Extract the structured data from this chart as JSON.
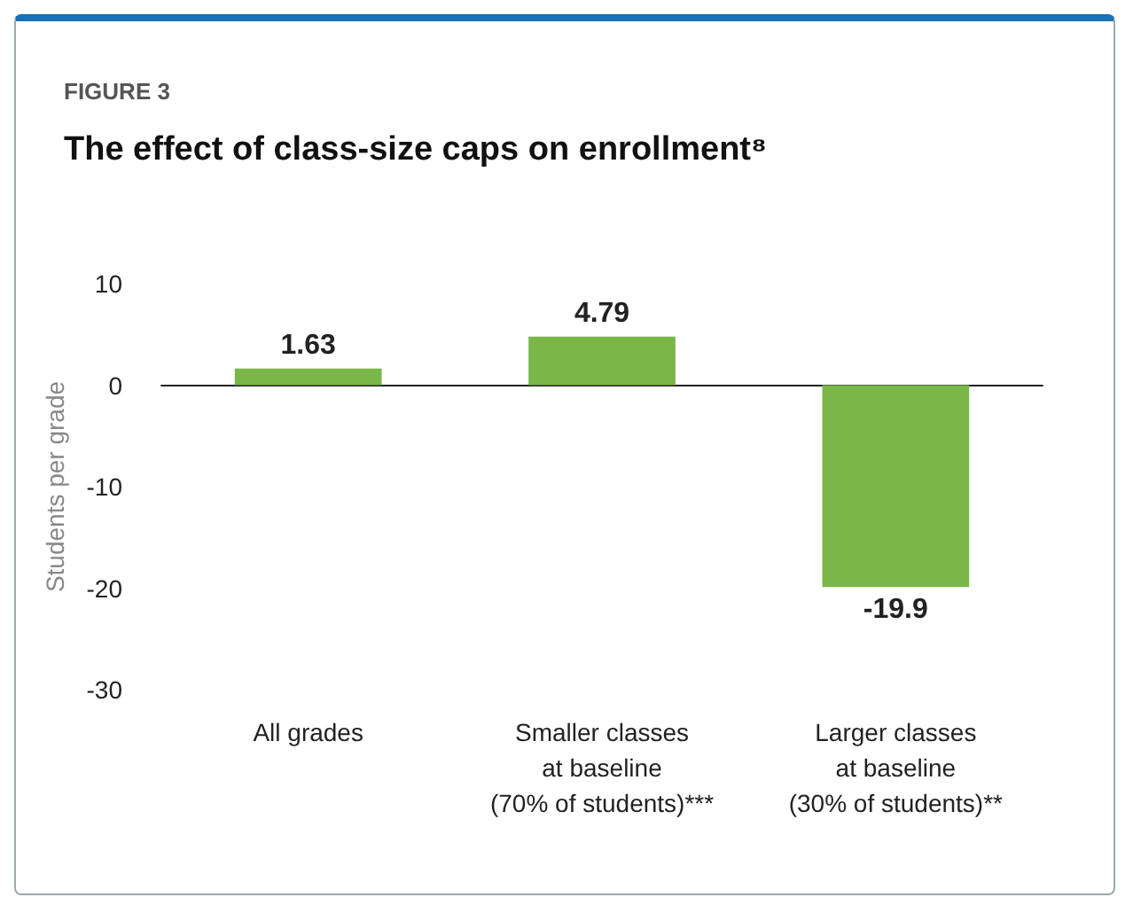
{
  "chart_data": {
    "type": "bar",
    "subtitle": "FIGURE 3",
    "title": "The effect of class-size caps on enrollment⁸",
    "ylabel": "Students per grade",
    "categories": [
      "All grades",
      "Smaller classes\nat baseline\n(70% of students)***",
      "Larger classes\nat baseline\n(30% of students)**"
    ],
    "values": [
      1.63,
      4.79,
      -19.9
    ],
    "color": "#7ab648",
    "ylim": [
      -30,
      10
    ],
    "yticks": [
      -30,
      -20,
      -10,
      0,
      10
    ],
    "data_labels": true
  }
}
